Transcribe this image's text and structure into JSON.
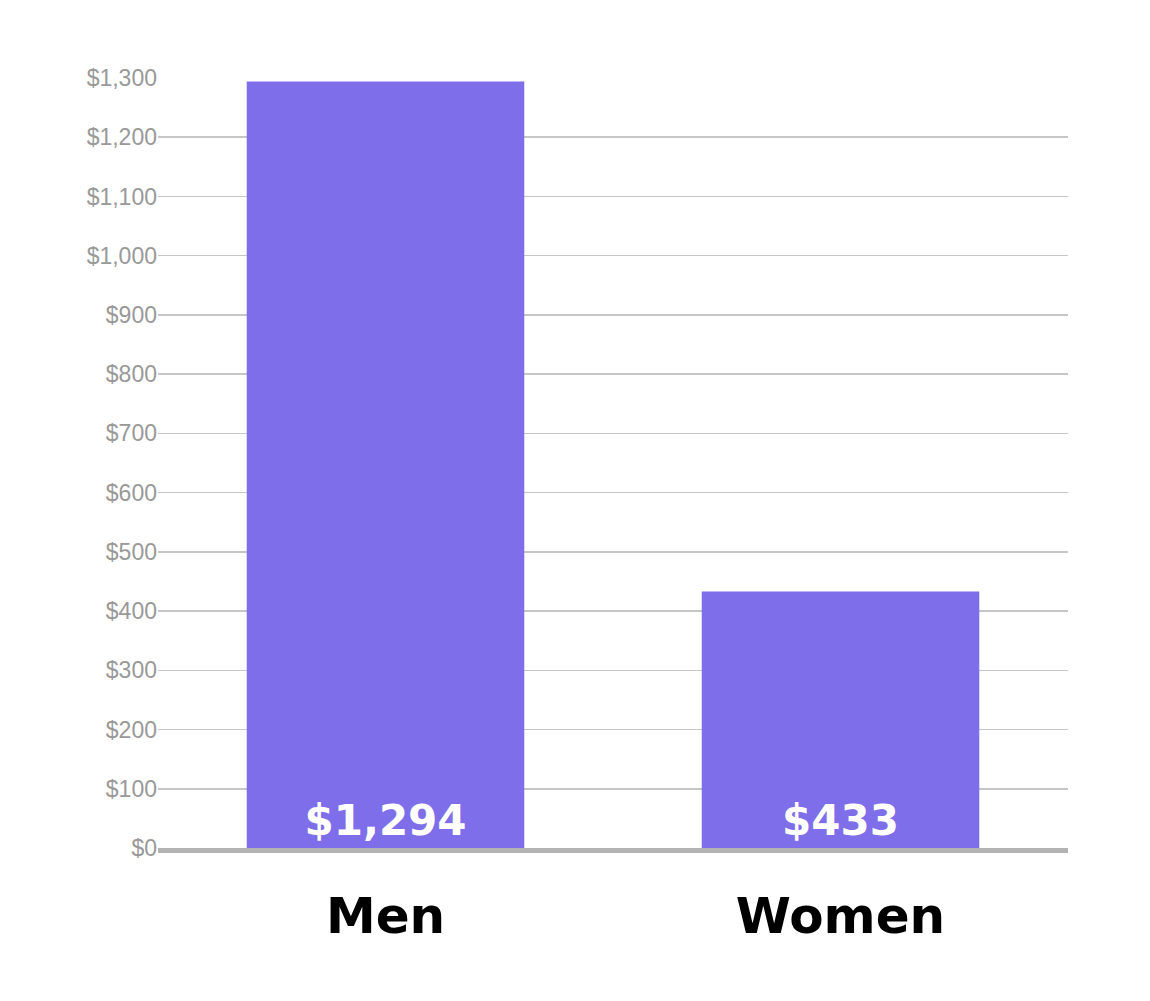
{
  "chart_data": {
    "type": "bar",
    "categories": [
      "Men",
      "Women"
    ],
    "values": [
      1294,
      433
    ],
    "value_labels": [
      "$1,294",
      "$433"
    ],
    "data_labels": true,
    "color": "#7f6ee9",
    "ylim": [
      0,
      1300
    ],
    "yticks": [
      {
        "value": 0,
        "label": "$0"
      },
      {
        "value": 100,
        "label": "$100"
      },
      {
        "value": 200,
        "label": "$200"
      },
      {
        "value": 300,
        "label": "$300"
      },
      {
        "value": 400,
        "label": "$400"
      },
      {
        "value": 500,
        "label": "$500"
      },
      {
        "value": 600,
        "label": "$600"
      },
      {
        "value": 700,
        "label": "$700"
      },
      {
        "value": 800,
        "label": "$800"
      },
      {
        "value": 900,
        "label": "$900"
      },
      {
        "value": 1000,
        "label": "$1,000"
      },
      {
        "value": 1100,
        "label": "$1,100"
      },
      {
        "value": 1200,
        "label": "$1,200"
      },
      {
        "value": 1300,
        "label": "$1,300"
      }
    ],
    "grid": true
  }
}
